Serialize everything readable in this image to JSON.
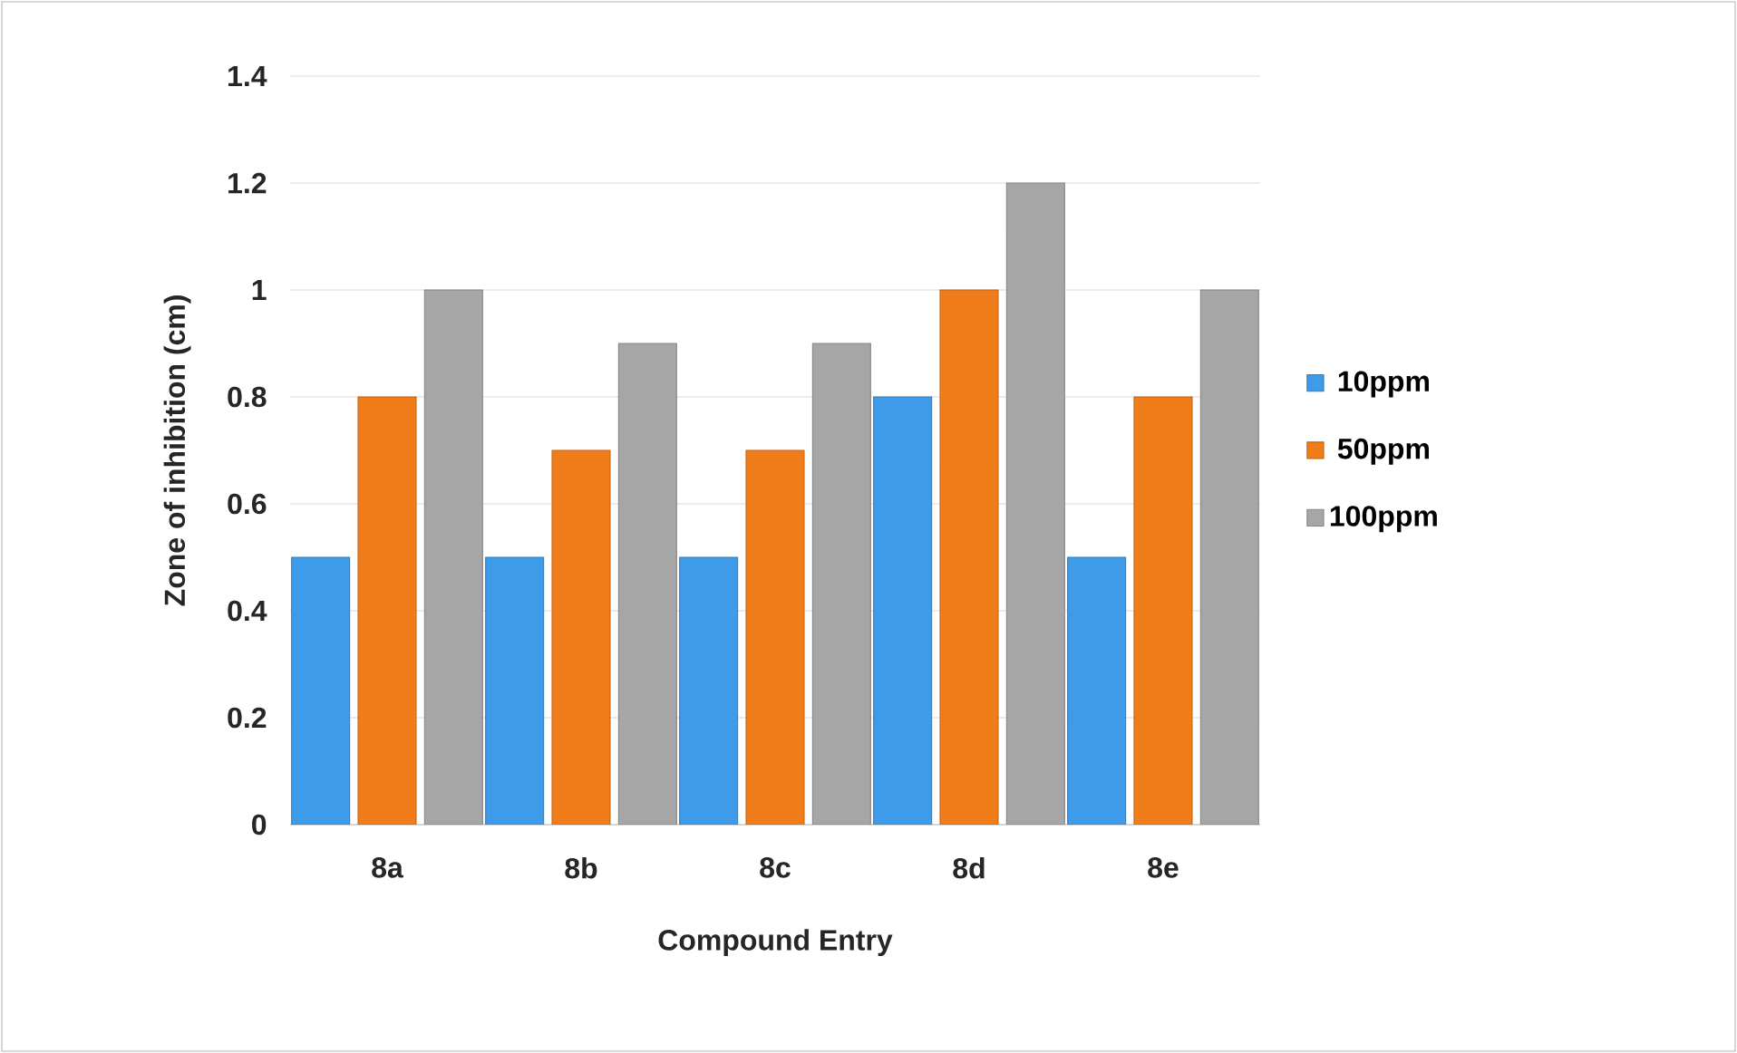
{
  "chart_data": {
    "type": "bar",
    "xlabel": "Compound Entry",
    "ylabel": "Zone of inhibition (cm)",
    "categories": [
      "8a",
      "8b",
      "8c",
      "8d",
      "8e"
    ],
    "series": [
      {
        "name": "10ppm",
        "color": "#3d9be9",
        "values": [
          0.5,
          0.5,
          0.5,
          0.8,
          0.5
        ]
      },
      {
        "name": "50ppm",
        "color": "#f07d1a",
        "values": [
          0.8,
          0.7,
          0.7,
          1.0,
          0.8
        ]
      },
      {
        "name": "100ppm",
        "color": "#a6a6a6",
        "values": [
          1.0,
          0.9,
          0.9,
          1.2,
          1.0
        ]
      }
    ],
    "ylim": [
      0,
      1.4
    ],
    "yticks": [
      0,
      0.2,
      0.4,
      0.6,
      0.8,
      1,
      1.2,
      1.4
    ],
    "grid": "y",
    "legend": "right"
  }
}
